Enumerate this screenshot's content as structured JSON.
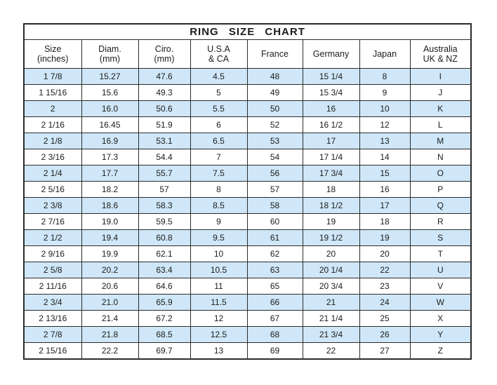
{
  "colors": {
    "row_highlight": "#cfe7f8",
    "border": "#2b2b2b",
    "text": "#1c1c1c",
    "background": "#ffffff"
  },
  "chart_data": {
    "type": "table",
    "title": "RING SIZE CHART",
    "columns": [
      {
        "line1": "Size",
        "line2": "(inches)"
      },
      {
        "line1": "Diam.",
        "line2": "(mm)"
      },
      {
        "line1": "Ciro.",
        "line2": "(mm)"
      },
      {
        "line1": "U.S.A",
        "line2": "& CA"
      },
      {
        "line1": "France",
        "line2": ""
      },
      {
        "line1": "Germany",
        "line2": ""
      },
      {
        "line1": "Japan",
        "line2": ""
      },
      {
        "line1": "Australia",
        "line2": "UK & NZ"
      }
    ],
    "rows": [
      [
        "1 7/8",
        "15.27",
        "47.6",
        "4.5",
        "48",
        "15 1/4",
        "8",
        "I"
      ],
      [
        "1 15/16",
        "15.6",
        "49.3",
        "5",
        "49",
        "15 3/4",
        "9",
        "J"
      ],
      [
        "2",
        "16.0",
        "50.6",
        "5.5",
        "50",
        "16",
        "10",
        "K"
      ],
      [
        "2 1/16",
        "16.45",
        "51.9",
        "6",
        "52",
        "16 1/2",
        "12",
        "L"
      ],
      [
        "2 1/8",
        "16.9",
        "53.1",
        "6.5",
        "53",
        "17",
        "13",
        "M"
      ],
      [
        "2 3/16",
        "17.3",
        "54.4",
        "7",
        "54",
        "17 1/4",
        "14",
        "N"
      ],
      [
        "2 1/4",
        "17.7",
        "55.7",
        "7.5",
        "56",
        "17 3/4",
        "15",
        "O"
      ],
      [
        "2 5/16",
        "18.2",
        "57",
        "8",
        "57",
        "18",
        "16",
        "P"
      ],
      [
        "2 3/8",
        "18.6",
        "58.3",
        "8.5",
        "58",
        "18 1/2",
        "17",
        "Q"
      ],
      [
        "2 7/16",
        "19.0",
        "59.5",
        "9",
        "60",
        "19",
        "18",
        "R"
      ],
      [
        "2 1/2",
        "19.4",
        "60.8",
        "9.5",
        "61",
        "19 1/2",
        "19",
        "S"
      ],
      [
        "2 9/16",
        "19.9",
        "62.1",
        "10",
        "62",
        "20",
        "20",
        "T"
      ],
      [
        "2 5/8",
        "20.2",
        "63.4",
        "10.5",
        "63",
        "20 1/4",
        "22",
        "U"
      ],
      [
        "2 11/16",
        "20.6",
        "64.6",
        "11",
        "65",
        "20 3/4",
        "23",
        "V"
      ],
      [
        "2 3/4",
        "21.0",
        "65.9",
        "11.5",
        "66",
        "21",
        "24",
        "W"
      ],
      [
        "2 13/16",
        "21.4",
        "67.2",
        "12",
        "67",
        "21 1/4",
        "25",
        "X"
      ],
      [
        "2 7/8",
        "21.8",
        "68.5",
        "12.5",
        "68",
        "21 3/4",
        "26",
        "Y"
      ],
      [
        "2 15/16",
        "22.2",
        "69.7",
        "13",
        "69",
        "22",
        "27",
        "Z"
      ]
    ]
  }
}
